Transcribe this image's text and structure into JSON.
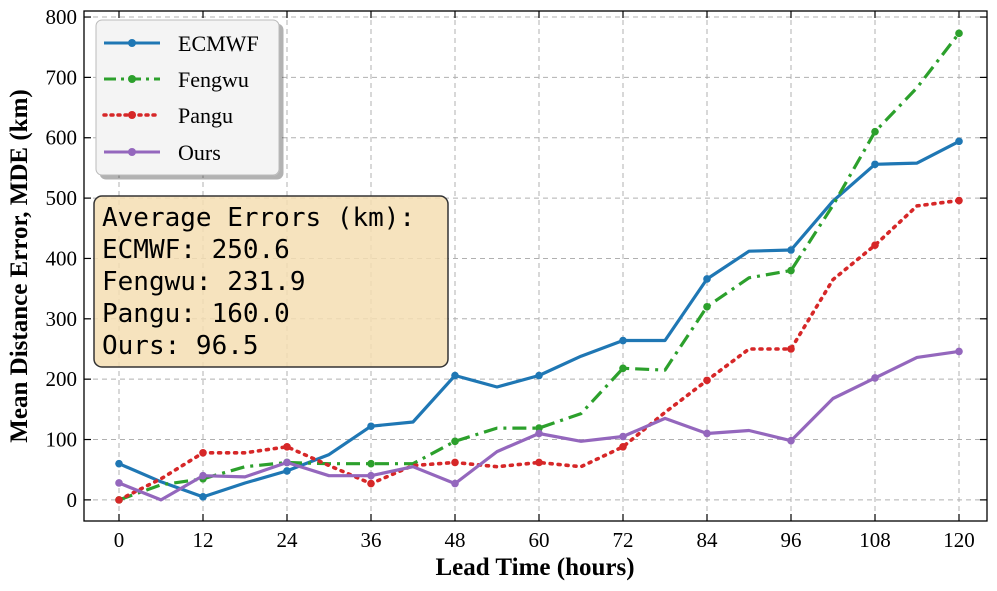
{
  "chart_data": {
    "type": "line",
    "xlabel": "Lead Time (hours)",
    "ylabel": "Mean Distance Error, MDE (km)",
    "xlim": [
      -5,
      124
    ],
    "ylim": [
      -35,
      810
    ],
    "xticks": [
      0,
      12,
      24,
      36,
      48,
      60,
      72,
      84,
      96,
      108,
      120
    ],
    "yticks": [
      0,
      100,
      200,
      300,
      400,
      500,
      600,
      700,
      800
    ],
    "grid": true,
    "legend_position": "top-left",
    "x": [
      0,
      6,
      12,
      18,
      24,
      30,
      36,
      42,
      48,
      54,
      60,
      66,
      72,
      78,
      84,
      90,
      96,
      102,
      108,
      114,
      120
    ],
    "series": [
      {
        "name": "ECMWF",
        "color": "#1f77b4",
        "style": "solid",
        "values": [
          60,
          30,
          5,
          28,
          48,
          75,
          122,
          129,
          206,
          187,
          206,
          238,
          264,
          264,
          366,
          412,
          414,
          495,
          556,
          558,
          594
        ]
      },
      {
        "name": "Fengwu",
        "color": "#2ca02c",
        "style": "dashdot",
        "values": [
          0,
          25,
          35,
          55,
          62,
          60,
          60,
          60,
          97,
          119,
          119,
          143,
          218,
          215,
          320,
          368,
          380,
          488,
          610,
          683,
          773
        ]
      },
      {
        "name": "Pangu",
        "color": "#d62728",
        "style": "dotted",
        "values": [
          0,
          35,
          78,
          78,
          88,
          57,
          27,
          57,
          62,
          55,
          62,
          55,
          88,
          145,
          198,
          250,
          250,
          365,
          422,
          487,
          496
        ]
      },
      {
        "name": "Ours",
        "color": "#9467bd",
        "style": "solid",
        "values": [
          28,
          0,
          40,
          38,
          62,
          40,
          40,
          55,
          27,
          80,
          110,
          97,
          105,
          135,
          110,
          115,
          98,
          168,
          202,
          236,
          246
        ]
      }
    ],
    "annotation": {
      "title": "Average Errors (km):",
      "lines": [
        "ECMWF: 250.6",
        "Fengwu: 231.9",
        "Pangu: 160.0",
        "Ours: 96.5"
      ]
    }
  }
}
